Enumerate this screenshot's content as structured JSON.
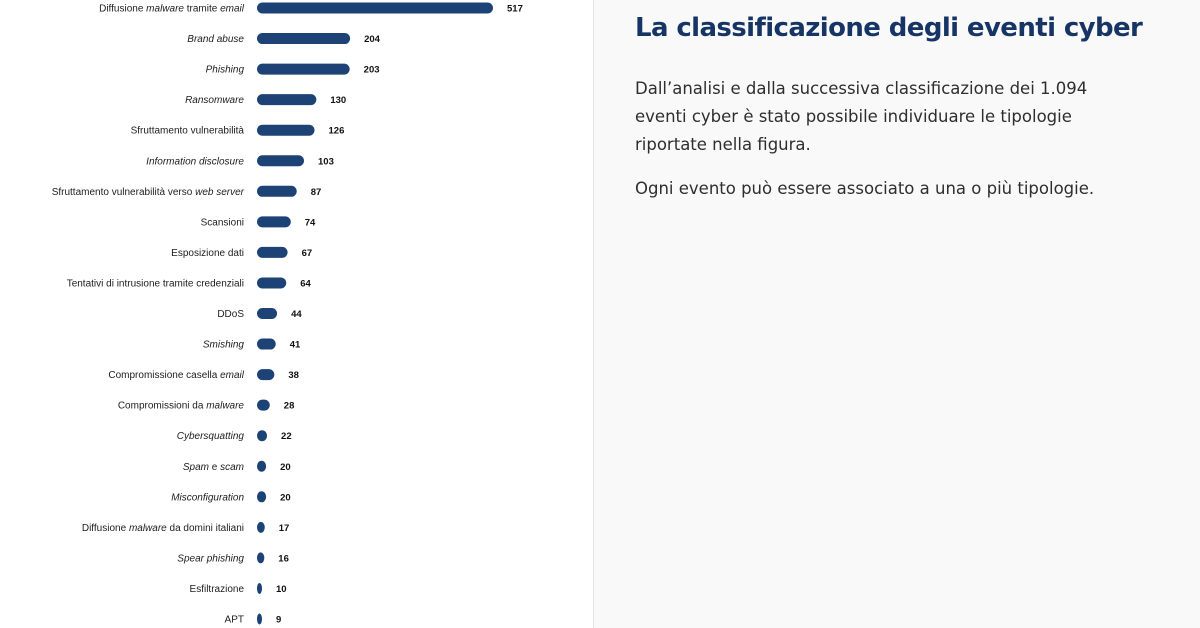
{
  "colors": {
    "bar": "#1d4276",
    "title": "#163565",
    "text": "#2e2e2e",
    "panel_background": "#f9f9f9"
  },
  "text_panel": {
    "title": "La classificazione degli eventi cyber",
    "paragraphs": [
      "Dall’analisi e dalla successiva classificazione dei 1.094 eventi cyber è stato possibile individuare le tipologie riportate nella figura.",
      "Ogni evento può essere associato a una o più tipologie."
    ]
  },
  "chart_data": {
    "type": "bar",
    "orientation": "horizontal",
    "categories": [
      "Diffusione malware tramite email",
      "Brand abuse",
      "Phishing",
      "Ransomware",
      "Sfruttamento vulnerabilità",
      "Information disclosure",
      "Sfruttamento vulnerabilità verso web server",
      "Scansioni",
      "Esposizione dati",
      "Tentativi di intrusione tramite credenziali",
      "DDoS",
      "Smishing",
      "Compromissione casella email",
      "Compromissioni da malware",
      "Cybersquatting",
      "Spam e scam",
      "Misconfiguration",
      "Diffusione malware da domini italiani",
      "Spear phishing",
      "Esfiltrazione",
      "APT"
    ],
    "label_parts": [
      [
        [
          "Diffusione ",
          false
        ],
        [
          "malware",
          true
        ],
        [
          " tramite ",
          false
        ],
        [
          "email",
          true
        ]
      ],
      [
        [
          "Brand abuse",
          true
        ]
      ],
      [
        [
          "Phishing",
          true
        ]
      ],
      [
        [
          "Ransomware",
          true
        ]
      ],
      [
        [
          "Sfruttamento vulnerabilità",
          false
        ]
      ],
      [
        [
          "Information disclosure",
          true
        ]
      ],
      [
        [
          "Sfruttamento vulnerabilità verso ",
          false
        ],
        [
          "web server",
          true
        ]
      ],
      [
        [
          "Scansioni",
          false
        ]
      ],
      [
        [
          "Esposizione dati",
          false
        ]
      ],
      [
        [
          "Tentativi di intrusione tramite credenziali",
          false
        ]
      ],
      [
        [
          "DDoS",
          false
        ]
      ],
      [
        [
          "Smishing",
          true
        ]
      ],
      [
        [
          "Compromissione casella ",
          false
        ],
        [
          "email",
          true
        ]
      ],
      [
        [
          "Compromissioni da ",
          false
        ],
        [
          "malware",
          true
        ]
      ],
      [
        [
          "Cybersquatting",
          true
        ]
      ],
      [
        [
          "Spam",
          true
        ],
        [
          " e ",
          false
        ],
        [
          "scam",
          true
        ]
      ],
      [
        [
          "Misconfiguration",
          true
        ]
      ],
      [
        [
          "Diffusione ",
          false
        ],
        [
          "malware",
          true
        ],
        [
          " da domini italiani",
          false
        ]
      ],
      [
        [
          "Spear phishing",
          true
        ]
      ],
      [
        [
          "Esfiltrazione",
          false
        ]
      ],
      [
        [
          "APT",
          false
        ]
      ]
    ],
    "values": [
      517,
      204,
      203,
      130,
      126,
      103,
      87,
      74,
      67,
      64,
      44,
      41,
      38,
      28,
      22,
      20,
      20,
      17,
      16,
      10,
      9
    ],
    "grid": false,
    "legend": false
  }
}
